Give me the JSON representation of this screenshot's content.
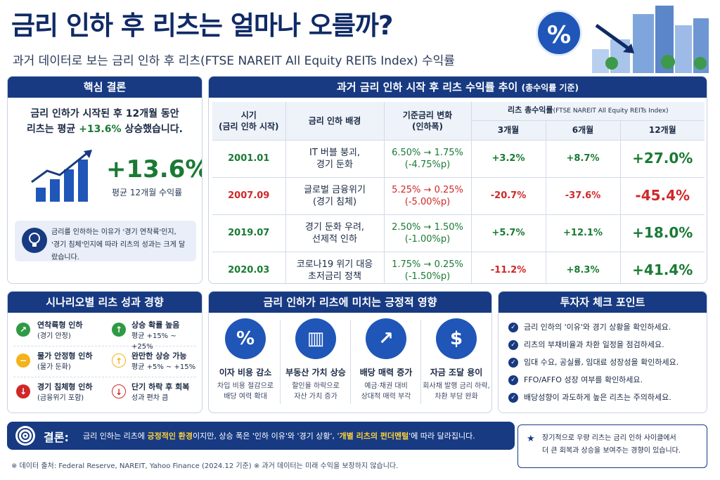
{
  "header": {
    "title": "금리 인하 후 리츠는 얼마나 오를까?",
    "subtitle": "과거 데이터로 보는 금리 인하 후 리츠(FTSE NAREIT All Equity REITs Index) 수익률",
    "hero_symbol": "%"
  },
  "core": {
    "heading": "핵심 결론",
    "line1": "금리 인하가 시작된 후 12개월 동안",
    "line2_pre": "리츠는 평균 ",
    "line2_hl": "+13.6%",
    "line2_post": " 상승했습니다.",
    "big_value": "+13.6%",
    "big_label": "평균 12개월 수익률",
    "note_line1": "금리를 인하하는 이유가 '경기 연착륙'인지,",
    "note_line2": "'경기 침체'인지에 따라 리츠의 성과는 크게 달랐습니다."
  },
  "trend": {
    "heading": "과거 금리 인하 시작 후 리츠 수익률 추이",
    "heading_sub": "(총수익률 기준)",
    "col_period": "시기",
    "col_period_sub": "(금리 인하 시작)",
    "col_background": "금리 인하 배경",
    "col_rate": "기준금리 변화",
    "col_rate_sub": "(인하폭)",
    "col_return": "리츠 총수익률",
    "col_return_sub": "(FTSE NAREIT All Equity REITs Index)",
    "col_3m": "3개월",
    "col_6m": "6개월",
    "col_12m": "12개월",
    "rows": [
      {
        "period": "2001.01",
        "bg1": "IT 버블 붕괴,",
        "bg2": "경기 둔화",
        "rate": "6.50% → 1.75%",
        "cut": "(-4.75%p)",
        "m3": "+3.2%",
        "m6": "+8.7%",
        "m12": "+27.0%"
      },
      {
        "period": "2007.09",
        "bg1": "글로벌 금융위기",
        "bg2": "(경기 침체)",
        "rate": "5.25% → 0.25%",
        "cut": "(-5.00%p)",
        "m3": "-20.7%",
        "m6": "-37.6%",
        "m12": "-45.4%"
      },
      {
        "period": "2019.07",
        "bg1": "경기 둔화 우려,",
        "bg2": "선제적 인하",
        "rate": "2.50% → 1.50%",
        "cut": "(-1.00%p)",
        "m3": "+5.7%",
        "m6": "+12.1%",
        "m12": "+18.0%"
      },
      {
        "period": "2020.03",
        "bg1": "코로나19 위기 대응",
        "bg2": "초저금리 정책",
        "rate": "1.75% → 0.25%",
        "cut": "(-1.50%p)",
        "m3": "-11.2%",
        "m6": "+8.3%",
        "m12": "+41.4%"
      }
    ]
  },
  "scenario": {
    "heading": "시나리오별 리츠 성과 경향",
    "rows": [
      {
        "case": "연착륙형 인하",
        "case_sub": "(경기 안정)",
        "result": "상승 확률 높음",
        "range": "평균 +15% ~ +25%"
      },
      {
        "case": "물가 안정형 인하",
        "case_sub": "(물가 둔화)",
        "result": "완만한 상승 가능",
        "range": "평균 +5% ~ +15%"
      },
      {
        "case": "경기 침체형 인하",
        "case_sub": "(금융위기 포함)",
        "result": "단기 하락 후 회복",
        "range": "성과 편차 큼"
      }
    ]
  },
  "impacts": {
    "heading": "금리 인하가 리츠에 미치는 긍정적 영향",
    "items": [
      {
        "icon": "%",
        "title": "이자 비용 감소",
        "d1": "차입 비용 절감으로",
        "d2": "배당 여력 확대"
      },
      {
        "icon": "▥",
        "title": "부동산 가치 상승",
        "d1": "할인율 하락으로",
        "d2": "자산 가치 증가"
      },
      {
        "icon": "↗",
        "title": "배당 매력 증가",
        "d1": "예금·채권 대비",
        "d2": "상대적 매력 부각"
      },
      {
        "icon": "$",
        "title": "자금 조달 용이",
        "d1": "회사채 발행 금리 하락,",
        "d2": "차환 부담 완화"
      }
    ]
  },
  "checklist": {
    "heading": "투자자 체크 포인트",
    "items": [
      "금리 인하의 '이유'와 경기 상황을 확인하세요.",
      "리츠의 부채비율과 차환 일정을 점검하세요.",
      "임대 수요, 공실률, 임대료 성장성을 확인하세요.",
      "FFO/AFFO 성장 여부를 확인하세요.",
      "배당성향이 과도하게 높은 리츠는 주의하세요."
    ]
  },
  "conclusion": {
    "label": "결론:",
    "t1": "금리 인하는 리츠에 ",
    "hl1": "긍정적인 환경",
    "t2": "이지만, 상승 폭은 '인하 이유'와 '경기 상황', '",
    "hl2": "개별 리츠의 펀더멘털",
    "t3": "'에 따라 달라집니다."
  },
  "longterm": {
    "line1": "장기적으로 우량 리츠는 금리 인하 사이클에서",
    "line2": "더 큰 회복과 상승을 보여주는 경향이 있습니다."
  },
  "footer": "※ 데이터 출처: Federal Reserve, NAREIT, Yahoo Finance (2024.12 기준)    ※ 과거 데이터는 미래 수익을 보장하지 않습니다.",
  "colors": {
    "navy": "#173a82",
    "positive": "#1a7a34",
    "negative": "#d02828",
    "yellow": "#ffd23a"
  }
}
